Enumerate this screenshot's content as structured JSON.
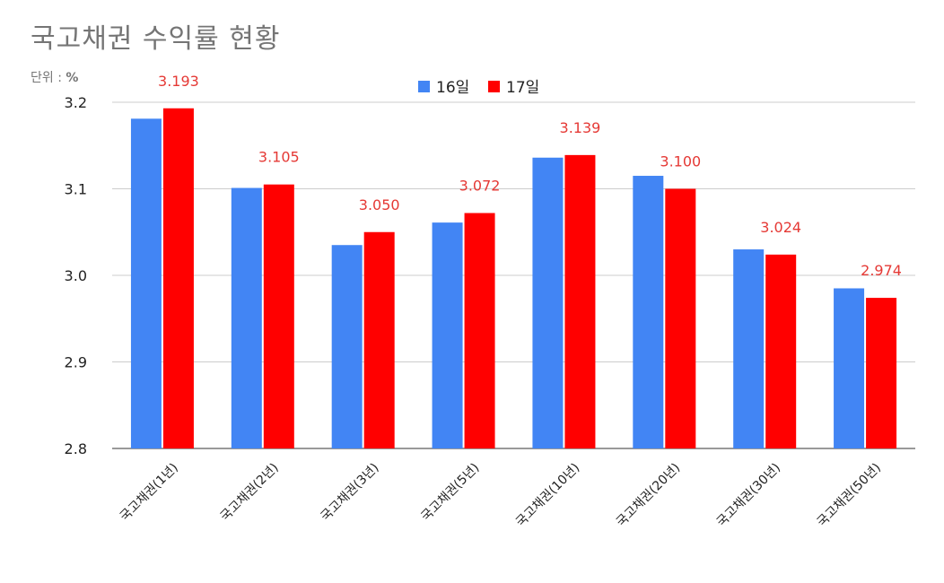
{
  "chart_data": {
    "type": "bar",
    "title": "국고채권 수익률 현황",
    "unit_label": "단위 :",
    "unit_value": "%",
    "categories": [
      "국고채권(1년)",
      "국고채권(2년)",
      "국고채권(3년)",
      "국고채권(5년)",
      "국고채권(10년)",
      "국고채권(20년)",
      "국고채권(30년)",
      "국고채권(50년)"
    ],
    "series": [
      {
        "name": "16일",
        "color": "#4285F4",
        "values": [
          3.181,
          3.101,
          3.035,
          3.061,
          3.136,
          3.115,
          3.03,
          2.985
        ]
      },
      {
        "name": "17일",
        "color": "#FF0000",
        "values": [
          3.193,
          3.105,
          3.05,
          3.072,
          3.139,
          3.1,
          3.024,
          2.974
        ]
      }
    ],
    "data_labels": [
      "3.193",
      "3.105",
      "3.050",
      "3.072",
      "3.139",
      "3.100",
      "3.024",
      "2.974"
    ],
    "data_label_color": "#E53935",
    "ylim": [
      2.8,
      3.2
    ],
    "yticks": [
      "2.8",
      "2.9",
      "3.0",
      "3.1",
      "3.2"
    ],
    "ytick_values": [
      2.8,
      2.9,
      3.0,
      3.1,
      3.2
    ],
    "grid": true,
    "legend_position": "top-center"
  }
}
